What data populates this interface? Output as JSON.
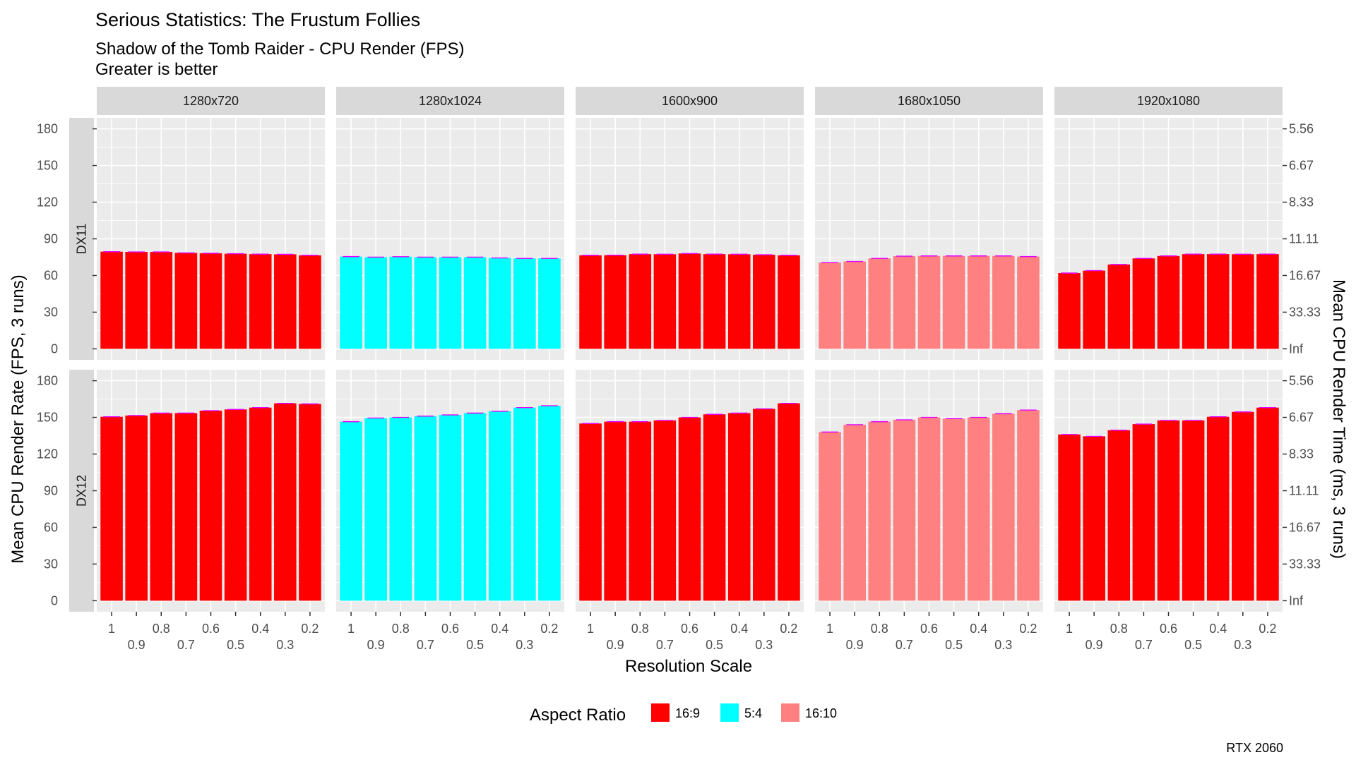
{
  "chart_data": {
    "type": "bar",
    "title": "Serious Statistics: The Frustum Follies",
    "subtitle_lines": [
      "Shadow of the Tomb Raider - CPU Render (FPS)",
      "Greater is better"
    ],
    "xlabel": "Resolution Scale",
    "ylabel": "Mean CPU Render Rate (FPS, 3 runs)",
    "ylabel_right": "Mean CPU Render Time (ms, 3 runs)",
    "caption": "RTX 2060",
    "ylim": [
      0,
      180
    ],
    "y_ticks": [
      0,
      30,
      60,
      90,
      120,
      150,
      180
    ],
    "y_ticks_right": [
      "Inf",
      "33.33",
      "16.67",
      "11.11",
      "8.33",
      "6.67",
      "5.56"
    ],
    "x_tick_labels_top": [
      "1",
      "0.8",
      "0.6",
      "0.4",
      "0.2"
    ],
    "x_tick_labels_bottom": [
      "0.9",
      "0.7",
      "0.5",
      "0.3"
    ],
    "resolution_scales": [
      "1",
      "0.9",
      "0.8",
      "0.7",
      "0.6",
      "0.5",
      "0.4",
      "0.3",
      "0.2"
    ],
    "grid": true,
    "legend_position": "bottom",
    "legend": {
      "title": "Aspect Ratio",
      "entries": [
        {
          "label": "16:9",
          "color": "#ff0000"
        },
        {
          "label": "5:4",
          "color": "#00ffff"
        },
        {
          "label": "16:10",
          "color": "#ff8080"
        }
      ]
    },
    "columns": [
      {
        "label": "1280x720",
        "aspect": "16:9"
      },
      {
        "label": "1280x1024",
        "aspect": "5:4"
      },
      {
        "label": "1600x900",
        "aspect": "16:9"
      },
      {
        "label": "1680x1050",
        "aspect": "16:10"
      },
      {
        "label": "1920x1080",
        "aspect": "16:9"
      }
    ],
    "rows": [
      {
        "label": "DX11",
        "values": [
          [
            79.5,
            79.3,
            79.3,
            78.5,
            78.2,
            77.8,
            77.5,
            77.3,
            76.5
          ],
          [
            75.5,
            75.0,
            75.4,
            75.0,
            75.0,
            75.0,
            74.4,
            74.0,
            74.0
          ],
          [
            76.5,
            76.6,
            77.5,
            77.4,
            78.0,
            77.5,
            77.4,
            77.0,
            76.5
          ],
          [
            70.5,
            71.5,
            74.0,
            75.8,
            76.0,
            76.0,
            76.0,
            76.0,
            75.5
          ],
          [
            62.0,
            64.0,
            69.0,
            74.0,
            76.0,
            77.5,
            77.5,
            77.4,
            77.5
          ]
        ]
      },
      {
        "label": "DX12",
        "values": [
          [
            150.5,
            151.5,
            153.5,
            153.5,
            155.5,
            156.5,
            158.0,
            161.5,
            161.0
          ],
          [
            146.5,
            149.5,
            150.0,
            151.0,
            152.0,
            153.5,
            155.0,
            158.0,
            159.5
          ],
          [
            145.0,
            146.5,
            146.5,
            147.5,
            150.0,
            152.5,
            153.5,
            157.0,
            161.5
          ],
          [
            138.0,
            144.0,
            146.5,
            148.0,
            150.0,
            149.0,
            150.0,
            153.0,
            156.0
          ],
          [
            136.0,
            134.5,
            139.5,
            144.5,
            147.5,
            147.5,
            150.5,
            154.5,
            158.0
          ]
        ]
      }
    ]
  }
}
